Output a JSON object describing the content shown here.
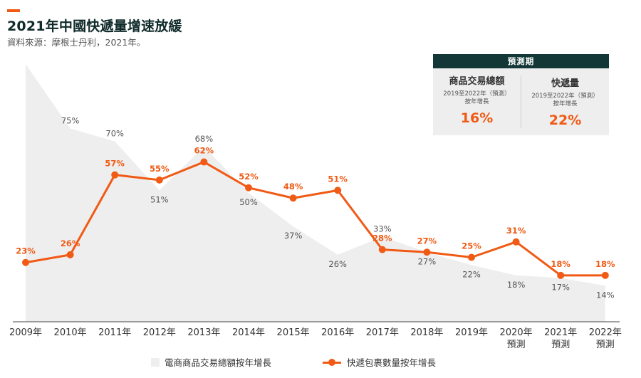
{
  "header": {
    "title": "2021年中國快遞量增速放緩",
    "subtitle": "資料來源：摩根士丹利，2021年。"
  },
  "colors": {
    "accent": "#f05a14",
    "area_fill": "#eeeeee",
    "header_bg": "#133636",
    "value_label_gray": "#555555",
    "axis_line": "#444444"
  },
  "forecast_box": {
    "header": "預測期",
    "columns": [
      {
        "title": "商品交易總額",
        "subtitle_line1": "2019至2022年（預測）",
        "subtitle_line2": "按年增長",
        "value": "16%"
      },
      {
        "title": "快遞量",
        "subtitle_line1": "2019至2022年（預測）",
        "subtitle_line2": "按年增長",
        "value": "22%"
      }
    ]
  },
  "legend": {
    "area_label": "電商商品交易總額按年增長",
    "line_label": "快遞包裹數量按年增長"
  },
  "chart_data": {
    "type": "line",
    "categories": [
      [
        "2009年"
      ],
      [
        "2010年"
      ],
      [
        "2011年"
      ],
      [
        "2012年"
      ],
      [
        "2013年"
      ],
      [
        "2014年"
      ],
      [
        "2015年"
      ],
      [
        "2016年"
      ],
      [
        "2017年"
      ],
      [
        "2018年"
      ],
      [
        "2019年"
      ],
      [
        "2020年",
        "預測"
      ],
      [
        "2021年",
        "預測"
      ],
      [
        "2022年",
        "預測"
      ]
    ],
    "ylim": [
      0,
      100
    ],
    "area_series": {
      "name": "電商商品交易總額按年增長",
      "values": [
        100,
        75,
        70,
        51,
        68,
        50,
        37,
        26,
        33,
        27,
        22,
        18,
        17,
        14
      ],
      "labels": [
        "",
        "75%",
        "70%",
        "51%",
        "68%",
        "50%",
        "37%",
        "26%",
        "33%",
        "27%",
        "22%",
        "18%",
        "17%",
        "14%"
      ]
    },
    "line_series": {
      "name": "快遞包裹數量按年增長",
      "values": [
        23,
        26,
        57,
        55,
        62,
        52,
        48,
        51,
        28,
        27,
        25,
        31,
        18,
        18
      ],
      "labels": [
        "23%",
        "26%",
        "57%",
        "55%",
        "62%",
        "52%",
        "48%",
        "51%",
        "28%",
        "27%",
        "25%",
        "31%",
        "18%",
        "18%"
      ]
    }
  }
}
